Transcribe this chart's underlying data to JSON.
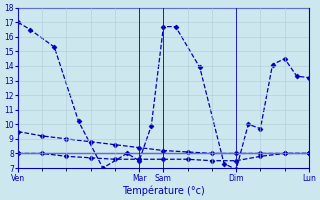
{
  "bg_color": "#cce8ee",
  "grid_color": "#aaccd8",
  "line_color": "#0000bb",
  "xlabel": "Température (°c)",
  "ylim": [
    7,
    18
  ],
  "yticks": [
    7,
    8,
    9,
    10,
    11,
    12,
    13,
    14,
    15,
    16,
    17,
    18
  ],
  "x_labels": [
    "Ven",
    "Mar",
    "Sam",
    "Dim",
    "Lun"
  ],
  "x_positions": [
    0,
    5,
    6,
    9,
    12
  ],
  "xlim": [
    0,
    12
  ],
  "s1x": [
    0,
    0.5,
    1.5,
    2.5,
    3.5,
    4.5,
    5.0,
    5.5,
    6.0,
    6.5,
    7.5,
    8.5,
    9.0,
    9.5,
    10.0,
    10.5,
    11.0,
    11.5,
    12.0
  ],
  "s1y": [
    17.0,
    16.5,
    15.3,
    10.2,
    7.0,
    8.0,
    7.5,
    9.9,
    16.7,
    16.7,
    13.9,
    7.3,
    6.9,
    10.0,
    9.7,
    14.1,
    14.5,
    13.3,
    13.2
  ],
  "s2x": [
    0,
    1,
    2,
    3,
    4,
    5,
    6,
    7,
    8,
    9,
    10,
    11,
    12
  ],
  "s2y": [
    9.5,
    9.2,
    9.0,
    8.8,
    8.6,
    8.4,
    8.2,
    8.1,
    8.0,
    8.0,
    8.0,
    8.0,
    8.0
  ],
  "s3x": [
    0,
    12
  ],
  "s3y": [
    8.0,
    8.0
  ],
  "s4x": [
    0,
    1,
    2,
    3,
    4,
    5,
    6,
    7,
    8,
    9,
    10,
    11,
    12
  ],
  "s4y": [
    8.0,
    8.0,
    7.8,
    7.7,
    7.6,
    7.6,
    7.6,
    7.6,
    7.5,
    7.5,
    7.8,
    8.0,
    8.0
  ]
}
